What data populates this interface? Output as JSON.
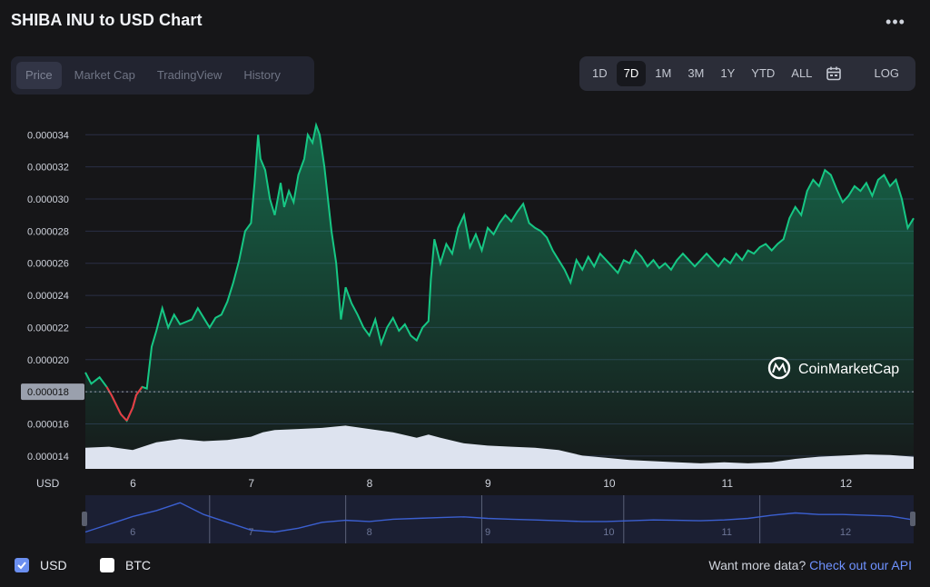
{
  "header": {
    "title": "SHIBA INU to USD Chart",
    "more_label": "•••"
  },
  "tabs": [
    {
      "label": "Price",
      "active": true
    },
    {
      "label": "Market Cap",
      "active": false
    },
    {
      "label": "TradingView",
      "active": false
    },
    {
      "label": "History",
      "active": false
    }
  ],
  "ranges": [
    {
      "label": "1D",
      "active": false
    },
    {
      "label": "7D",
      "active": true
    },
    {
      "label": "1M",
      "active": false
    },
    {
      "label": "3M",
      "active": false
    },
    {
      "label": "1Y",
      "active": false
    },
    {
      "label": "YTD",
      "active": false
    },
    {
      "label": "ALL",
      "active": false
    }
  ],
  "calendar_icon": "calendar-icon",
  "log_label": "LOG",
  "legend": {
    "usd_label": "USD",
    "btc_label": "BTC",
    "usd_checked": true,
    "btc_checked": false
  },
  "api": {
    "text": "Want more data?",
    "link": "Check out our API"
  },
  "watermark": "CoinMarketCap",
  "colors": {
    "up": "#16c784",
    "down": "#ea3943",
    "volume": "#dde3ef",
    "navigator": "#3b5fd0",
    "accent_link": "#6f92ff"
  },
  "chart_data": {
    "type": "line",
    "title": "SHIBA INU to USD Chart",
    "xlabel": "USD",
    "ylabel": "",
    "y_ticks": [
      "0.000014",
      "0.000016",
      "0.000018",
      "0.000020",
      "0.000022",
      "0.000024",
      "0.000026",
      "0.000028",
      "0.000030",
      "0.000032",
      "0.000034"
    ],
    "y_tick_values": [
      1.4e-05,
      1.6e-05,
      1.8e-05,
      2e-05,
      2.2e-05,
      2.4e-05,
      2.6e-05,
      2.8e-05,
      3e-05,
      3.2e-05,
      3.4e-05
    ],
    "ylim": [
      1.32e-05,
      3.56e-05
    ],
    "reference_value": 1.8e-05,
    "reference_label": "0.000018",
    "x_ticks": [
      "6",
      "7",
      "8",
      "9",
      "10",
      "11",
      "12"
    ],
    "x_tick_values": [
      6,
      7,
      8,
      9,
      10,
      11,
      12
    ],
    "xlim": [
      5.6,
      12.6
    ],
    "series": [
      {
        "name": "Price (USD)",
        "x": [
          5.6,
          5.65,
          5.72,
          5.78,
          5.82,
          5.86,
          5.9,
          5.95,
          6.0,
          6.03,
          6.08,
          6.12,
          6.16,
          6.2,
          6.25,
          6.3,
          6.35,
          6.4,
          6.5,
          6.55,
          6.6,
          6.65,
          6.7,
          6.75,
          6.8,
          6.85,
          6.9,
          6.95,
          7.0,
          7.03,
          7.06,
          7.08,
          7.12,
          7.16,
          7.2,
          7.25,
          7.28,
          7.32,
          7.36,
          7.4,
          7.45,
          7.48,
          7.52,
          7.55,
          7.58,
          7.62,
          7.65,
          7.68,
          7.72,
          7.76,
          7.8,
          7.85,
          7.9,
          7.95,
          8.0,
          8.05,
          8.1,
          8.15,
          8.2,
          8.25,
          8.3,
          8.35,
          8.4,
          8.45,
          8.5,
          8.52,
          8.55,
          8.6,
          8.65,
          8.7,
          8.75,
          8.8,
          8.85,
          8.9,
          8.95,
          9.0,
          9.05,
          9.1,
          9.15,
          9.2,
          9.25,
          9.3,
          9.35,
          9.4,
          9.45,
          9.5,
          9.55,
          9.6,
          9.65,
          9.7,
          9.75,
          9.8,
          9.85,
          9.9,
          9.95,
          10.0,
          10.05,
          10.1,
          10.15,
          10.2,
          10.25,
          10.3,
          10.35,
          10.4,
          10.45,
          10.5,
          10.55,
          10.6,
          10.65,
          10.7,
          10.75,
          10.8,
          10.85,
          10.9,
          10.95,
          11.0,
          11.05,
          11.1,
          11.15,
          11.2,
          11.25,
          11.3,
          11.35,
          11.4,
          11.45,
          11.5,
          11.55,
          11.6,
          11.65,
          11.7,
          11.75,
          11.8,
          11.85,
          11.9,
          11.95,
          12.0,
          12.05,
          12.1,
          12.15,
          12.2,
          12.25,
          12.3,
          12.35,
          12.4,
          12.45,
          12.5,
          12.55,
          12.6
        ],
        "y": [
          1.92e-05,
          1.85e-05,
          1.89e-05,
          1.83e-05,
          1.78e-05,
          1.72e-05,
          1.66e-05,
          1.62e-05,
          1.7e-05,
          1.78e-05,
          1.83e-05,
          1.82e-05,
          2.08e-05,
          2.18e-05,
          2.32e-05,
          2.2e-05,
          2.28e-05,
          2.22e-05,
          2.25e-05,
          2.32e-05,
          2.26e-05,
          2.2e-05,
          2.26e-05,
          2.28e-05,
          2.36e-05,
          2.48e-05,
          2.62e-05,
          2.8e-05,
          2.85e-05,
          3.1e-05,
          3.4e-05,
          3.25e-05,
          3.18e-05,
          3e-05,
          2.9e-05,
          3.1e-05,
          2.95e-05,
          3.05e-05,
          2.98e-05,
          3.15e-05,
          3.25e-05,
          3.4e-05,
          3.35e-05,
          3.46e-05,
          3.4e-05,
          3.2e-05,
          3e-05,
          2.8e-05,
          2.6e-05,
          2.25e-05,
          2.45e-05,
          2.35e-05,
          2.28e-05,
          2.2e-05,
          2.15e-05,
          2.25e-05,
          2.1e-05,
          2.2e-05,
          2.26e-05,
          2.18e-05,
          2.22e-05,
          2.15e-05,
          2.12e-05,
          2.2e-05,
          2.24e-05,
          2.5e-05,
          2.75e-05,
          2.6e-05,
          2.72e-05,
          2.66e-05,
          2.82e-05,
          2.9e-05,
          2.7e-05,
          2.78e-05,
          2.68e-05,
          2.82e-05,
          2.78e-05,
          2.85e-05,
          2.9e-05,
          2.86e-05,
          2.92e-05,
          2.97e-05,
          2.85e-05,
          2.82e-05,
          2.8e-05,
          2.76e-05,
          2.68e-05,
          2.62e-05,
          2.56e-05,
          2.48e-05,
          2.62e-05,
          2.56e-05,
          2.64e-05,
          2.58e-05,
          2.66e-05,
          2.62e-05,
          2.58e-05,
          2.54e-05,
          2.62e-05,
          2.6e-05,
          2.68e-05,
          2.64e-05,
          2.58e-05,
          2.62e-05,
          2.57e-05,
          2.6e-05,
          2.56e-05,
          2.62e-05,
          2.66e-05,
          2.62e-05,
          2.58e-05,
          2.62e-05,
          2.66e-05,
          2.62e-05,
          2.58e-05,
          2.63e-05,
          2.6e-05,
          2.66e-05,
          2.62e-05,
          2.68e-05,
          2.66e-05,
          2.7e-05,
          2.72e-05,
          2.68e-05,
          2.72e-05,
          2.75e-05,
          2.88e-05,
          2.95e-05,
          2.9e-05,
          3.05e-05,
          3.12e-05,
          3.08e-05,
          3.18e-05,
          3.15e-05,
          3.06e-05,
          2.98e-05,
          3.02e-05,
          3.08e-05,
          3.05e-05,
          3.1e-05,
          3.02e-05,
          3.12e-05,
          3.15e-05,
          3.08e-05,
          3.12e-05,
          3e-05,
          2.82e-05,
          2.88e-05
        ]
      },
      {
        "name": "Volume",
        "x": [
          5.6,
          5.8,
          6.0,
          6.2,
          6.4,
          6.6,
          6.8,
          7.0,
          7.1,
          7.2,
          7.4,
          7.6,
          7.8,
          8.0,
          8.2,
          8.4,
          8.5,
          8.6,
          8.8,
          9.0,
          9.2,
          9.4,
          9.6,
          9.8,
          10.0,
          10.2,
          10.4,
          10.6,
          10.8,
          11.0,
          11.2,
          11.4,
          11.6,
          11.8,
          12.0,
          12.2,
          12.4,
          12.6
        ],
        "y": [
          0.38,
          0.4,
          0.34,
          0.48,
          0.54,
          0.5,
          0.52,
          0.58,
          0.66,
          0.7,
          0.72,
          0.74,
          0.78,
          0.72,
          0.66,
          0.56,
          0.62,
          0.56,
          0.46,
          0.42,
          0.4,
          0.38,
          0.34,
          0.24,
          0.2,
          0.16,
          0.14,
          0.12,
          0.1,
          0.12,
          0.1,
          0.12,
          0.18,
          0.22,
          0.24,
          0.26,
          0.25,
          0.22
        ]
      },
      {
        "name": "Navigator",
        "x": [
          5.6,
          5.8,
          6.0,
          6.2,
          6.4,
          6.6,
          6.8,
          7.0,
          7.2,
          7.4,
          7.6,
          7.8,
          8.0,
          8.2,
          8.4,
          8.6,
          8.8,
          9.0,
          9.2,
          9.4,
          9.6,
          9.8,
          10.0,
          10.2,
          10.4,
          10.6,
          10.8,
          11.0,
          11.2,
          11.4,
          11.6,
          11.8,
          12.0,
          12.2,
          12.4,
          12.6
        ],
        "y": [
          0.15,
          0.35,
          0.55,
          0.7,
          0.9,
          0.6,
          0.4,
          0.2,
          0.15,
          0.25,
          0.4,
          0.45,
          0.42,
          0.48,
          0.5,
          0.52,
          0.54,
          0.5,
          0.48,
          0.46,
          0.44,
          0.42,
          0.42,
          0.44,
          0.46,
          0.45,
          0.44,
          0.46,
          0.5,
          0.58,
          0.64,
          0.6,
          0.6,
          0.58,
          0.56,
          0.46
        ]
      }
    ]
  }
}
